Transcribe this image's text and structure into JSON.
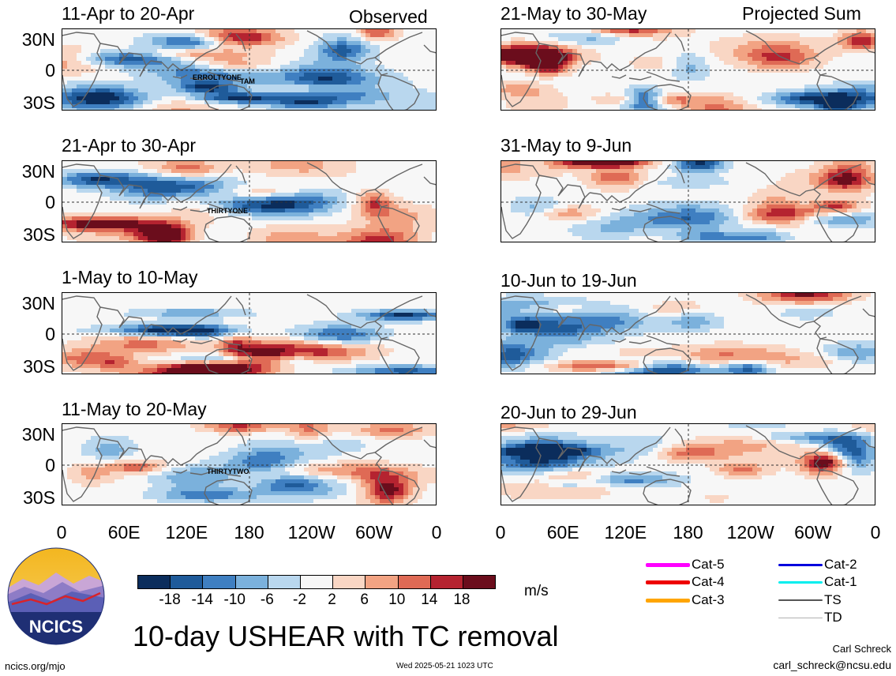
{
  "header": {
    "left_tag": "Observed",
    "right_tag": "Projected Sum"
  },
  "panels": {
    "left": [
      {
        "title": "11-Apr to 20-Apr",
        "storm_labels": [
          "ERROL",
          "TYONE",
          "TAM"
        ]
      },
      {
        "title": "21-Apr to 30-Apr",
        "storm_labels": [
          "THIRTYONE"
        ]
      },
      {
        "title": "1-May to 10-May",
        "storm_labels": []
      },
      {
        "title": "11-May to 20-May",
        "storm_labels": [
          "THIRTYTWO"
        ]
      }
    ],
    "right": [
      {
        "title": "21-May to 30-May"
      },
      {
        "title": "31-May to 9-Jun"
      },
      {
        "title": "10-Jun to 19-Jun"
      },
      {
        "title": "20-Jun to 29-Jun"
      }
    ]
  },
  "axes": {
    "y_ticks": [
      "30N",
      "0",
      "30S"
    ],
    "x_ticks": [
      "0",
      "60E",
      "120E",
      "180",
      "120W",
      "60W",
      "0"
    ]
  },
  "colorbar": {
    "colors": [
      "#0b2d5c",
      "#1f5b9a",
      "#3f7fc1",
      "#7bb1dc",
      "#b9d7ee",
      "#f7f7f7",
      "#f9d6c4",
      "#f2a383",
      "#df6a55",
      "#b52330",
      "#6b0d1c"
    ],
    "labels": [
      "-18",
      "-14",
      "-10",
      "-6",
      "-2",
      "2",
      "6",
      "10",
      "14",
      "18"
    ],
    "unit": "m/s"
  },
  "legend": {
    "items": [
      {
        "label": "Cat-5",
        "color": "#ff00ff"
      },
      {
        "label": "Cat-4",
        "color": "#ee0000"
      },
      {
        "label": "Cat-3",
        "color": "#ffa500"
      },
      {
        "label": "Cat-2",
        "color": "#0000dd"
      },
      {
        "label": "Cat-1",
        "color": "#00eeee"
      },
      {
        "label": "TS",
        "color": "#555555"
      },
      {
        "label": "TD",
        "color": "#b0b0b0"
      }
    ]
  },
  "logo": {
    "text": "NCICS"
  },
  "footer": {
    "title": "10-day USHEAR with TC removal",
    "url": "ncics.org/mjo",
    "timestamp": "Wed 2025-05-21 1023 UTC",
    "author": "Carl Schreck",
    "email": "carl_schreck@ncsu.edu"
  },
  "chart_data": {
    "type": "heatmap",
    "variable": "10-day USHEAR with TC removal",
    "unit": "m/s",
    "color_levels": [
      -18,
      -14,
      -10,
      -6,
      -2,
      2,
      6,
      10,
      14,
      18
    ],
    "x_ticks": [
      "0",
      "60E",
      "120E",
      "180",
      "120W",
      "60W",
      "0"
    ],
    "y_ticks": [
      "30N",
      "0",
      "30S"
    ],
    "panels": [
      "11-Apr to 20-Apr",
      "21-Apr to 30-Apr",
      "1-May to 10-May",
      "11-May to 20-May",
      "21-May to 30-May",
      "31-May to 9-Jun",
      "10-Jun to 19-Jun",
      "20-Jun to 29-Jun"
    ]
  }
}
